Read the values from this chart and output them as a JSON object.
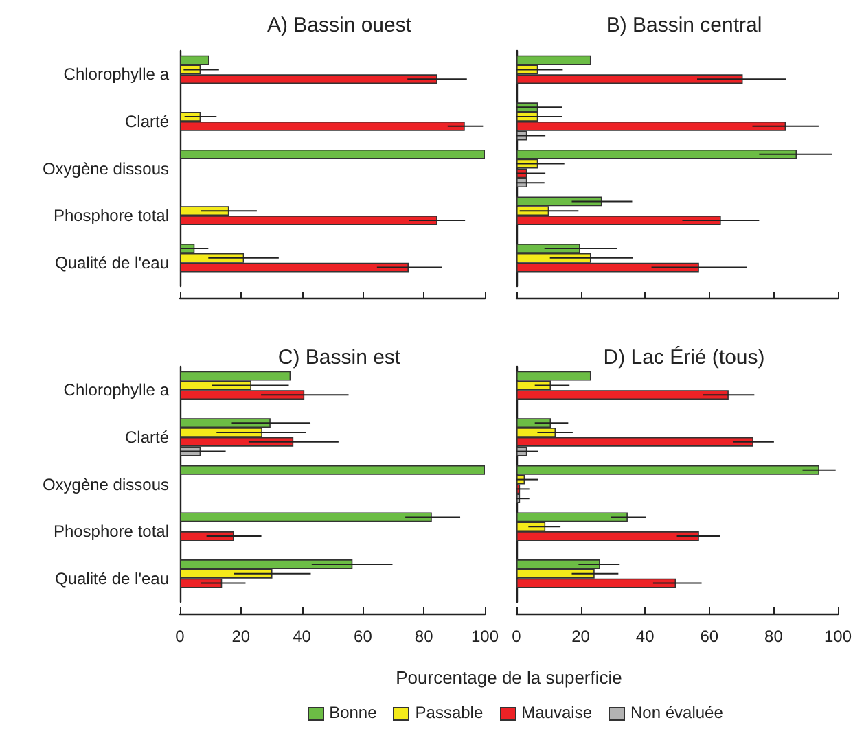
{
  "chart_data": [
    {
      "type": "bar",
      "orientation": "horizontal",
      "title": "A) Bassin ouest",
      "categories": [
        "Chlorophylle a",
        "Clarté",
        "Oxygène dissous",
        "Phosphore total",
        "Qualité de l'eau"
      ],
      "xlim": [
        0,
        100
      ],
      "xticks": [
        0,
        20,
        40,
        60,
        80,
        100
      ],
      "tick_labels": "y",
      "grid": false,
      "series": [
        {
          "color": "#6cbd45",
          "values": [
            9.6,
            null,
            100,
            null,
            4.8
          ],
          "errors": [
            null,
            null,
            null,
            null,
            [
              0.3,
              9.3
            ]
          ]
        },
        {
          "color": "#f4ea1a",
          "values": [
            6.8,
            6.8,
            null,
            16.1,
            21
          ],
          "errors": [
            [
              1.2,
              12.8
            ],
            [
              1.5,
              12
            ],
            null,
            [
              6.8,
              25.2
            ],
            [
              9.3,
              32.4
            ]
          ]
        },
        {
          "color": "#ed2226",
          "values": [
            84.4,
            93.4,
            null,
            84.4,
            75
          ],
          "errors": [
            [
              74.6,
              94.1
            ],
            [
              87.8,
              99.4
            ],
            null,
            [
              75,
              93.5
            ],
            [
              64.6,
              85.9
            ]
          ]
        },
        {
          "color": "#b3b3b3",
          "values": [
            null,
            null,
            null,
            null,
            null
          ]
        }
      ]
    },
    {
      "type": "bar",
      "orientation": "horizontal",
      "title": "B) Bassin central",
      "xlim": [
        0,
        100
      ],
      "xticks": [
        0,
        20,
        40,
        60,
        80,
        100
      ],
      "tick_labels": false,
      "grid": false,
      "series": [
        {
          "color": "#6cbd45",
          "values": [
            23.2,
            6.7,
            87.2,
            26.6,
            19.8
          ],
          "errors": [
            null,
            [
              0,
              14.2
            ],
            [
              75.5,
              98.2
            ],
            [
              17.2,
              36
            ],
            [
              8.7,
              31.2
            ]
          ]
        },
        {
          "color": "#f4ea1a",
          "values": [
            6.7,
            6.7,
            6.7,
            10.1,
            23.2
          ],
          "errors": [
            [
              0,
              14.4
            ],
            [
              0,
              14.2
            ],
            [
              0,
              14.9
            ],
            [
              1,
              19.3
            ],
            [
              10.4,
              36.3
            ]
          ]
        },
        {
          "color": "#ed2226",
          "values": [
            70.4,
            83.8,
            3.3,
            63.6,
            56.8
          ],
          "errors": [
            [
              56.2,
              83.9
            ],
            [
              73.4,
              94
            ],
            [
              0,
              9
            ],
            [
              51.6,
              75.5
            ],
            [
              42,
              71.7
            ]
          ]
        },
        {
          "color": "#b3b3b3",
          "values": [
            null,
            3.3,
            3.3,
            null,
            null
          ],
          "errors": [
            null,
            [
              0,
              9
            ],
            [
              0,
              8.7
            ],
            null,
            null
          ]
        }
      ]
    },
    {
      "type": "bar",
      "orientation": "horizontal",
      "title": "C) Bassin est",
      "categories": [
        "Chlorophylle a",
        "Clarté",
        "Oxygène dissous",
        "Phosphore total",
        "Qualité de l'eau"
      ],
      "xlim": [
        0,
        100
      ],
      "xticks": [
        0,
        20,
        40,
        60,
        80,
        100
      ],
      "grid": false,
      "series": [
        {
          "color": "#6cbd45",
          "values": [
            36.3,
            29.7,
            100,
            82.6,
            56.6
          ],
          "errors": [
            null,
            [
              17,
              42.8
            ],
            null,
            [
              73.9,
              91.9
            ],
            [
              43.2,
              69.7
            ]
          ]
        },
        {
          "color": "#f4ea1a",
          "values": [
            23.4,
            27,
            null,
            null,
            30.3
          ],
          "errors": [
            [
              10.5,
              35.7
            ],
            [
              12,
              41.3
            ],
            null,
            null,
            [
              17.7,
              42.9
            ]
          ]
        },
        {
          "color": "#ed2226",
          "values": [
            40.8,
            37.2,
            null,
            17.7,
            13.8
          ],
          "errors": [
            [
              26.6,
              55.3
            ],
            [
              22.5,
              52
            ],
            null,
            [
              8.7,
              26.7
            ],
            [
              6.8,
              21.5
            ]
          ]
        },
        {
          "color": "#b3b3b3",
          "values": [
            null,
            6.8,
            null,
            null,
            null
          ],
          "errors": [
            null,
            [
              0,
              15
            ],
            null,
            null,
            null
          ]
        }
      ]
    },
    {
      "type": "bar",
      "orientation": "horizontal",
      "title": "D) Lac Érié (tous)",
      "xlabel": "Pourcentage de la superficie",
      "xlim": [
        0,
        100
      ],
      "xticks": [
        0,
        20,
        40,
        60,
        80,
        100
      ],
      "tick_labels": "x",
      "grid": false,
      "legend": "bottom",
      "series": [
        {
          "name": "Bonne",
          "color": "#6cbd45",
          "values": [
            23.2,
            10.7,
            94.2,
            34.6,
            26
          ],
          "errors": [
            null,
            [
              5.7,
              16.1
            ],
            [
              89,
              99.3
            ],
            [
              29.4,
              40.3
            ],
            [
              19.3,
              32.1
            ]
          ]
        },
        {
          "name": "Passable",
          "color": "#f4ea1a",
          "values": [
            10.7,
            12.2,
            2.6,
            9,
            24.3
          ],
          "errors": [
            [
              5.7,
              16.5
            ],
            [
              6.5,
              17.5
            ],
            [
              0,
              6.8
            ],
            [
              3.7,
              13.7
            ],
            [
              17.2,
              31.7
            ]
          ]
        },
        {
          "name": "Mauvaise",
          "color": "#ed2226",
          "values": [
            66,
            73.7,
            1.1,
            56.8,
            49.6
          ],
          "errors": [
            [
              57.9,
              74
            ],
            [
              67.3,
              80.1
            ],
            [
              0,
              4
            ],
            [
              49.9,
              63.3
            ],
            [
              42.5,
              57.6
            ]
          ]
        },
        {
          "name": "Non évaluée",
          "color": "#b3b3b3",
          "values": [
            null,
            3.3,
            1.1,
            null,
            null
          ],
          "errors": [
            null,
            [
              0,
              6.8
            ],
            [
              0,
              4
            ],
            null,
            null
          ]
        }
      ]
    }
  ]
}
